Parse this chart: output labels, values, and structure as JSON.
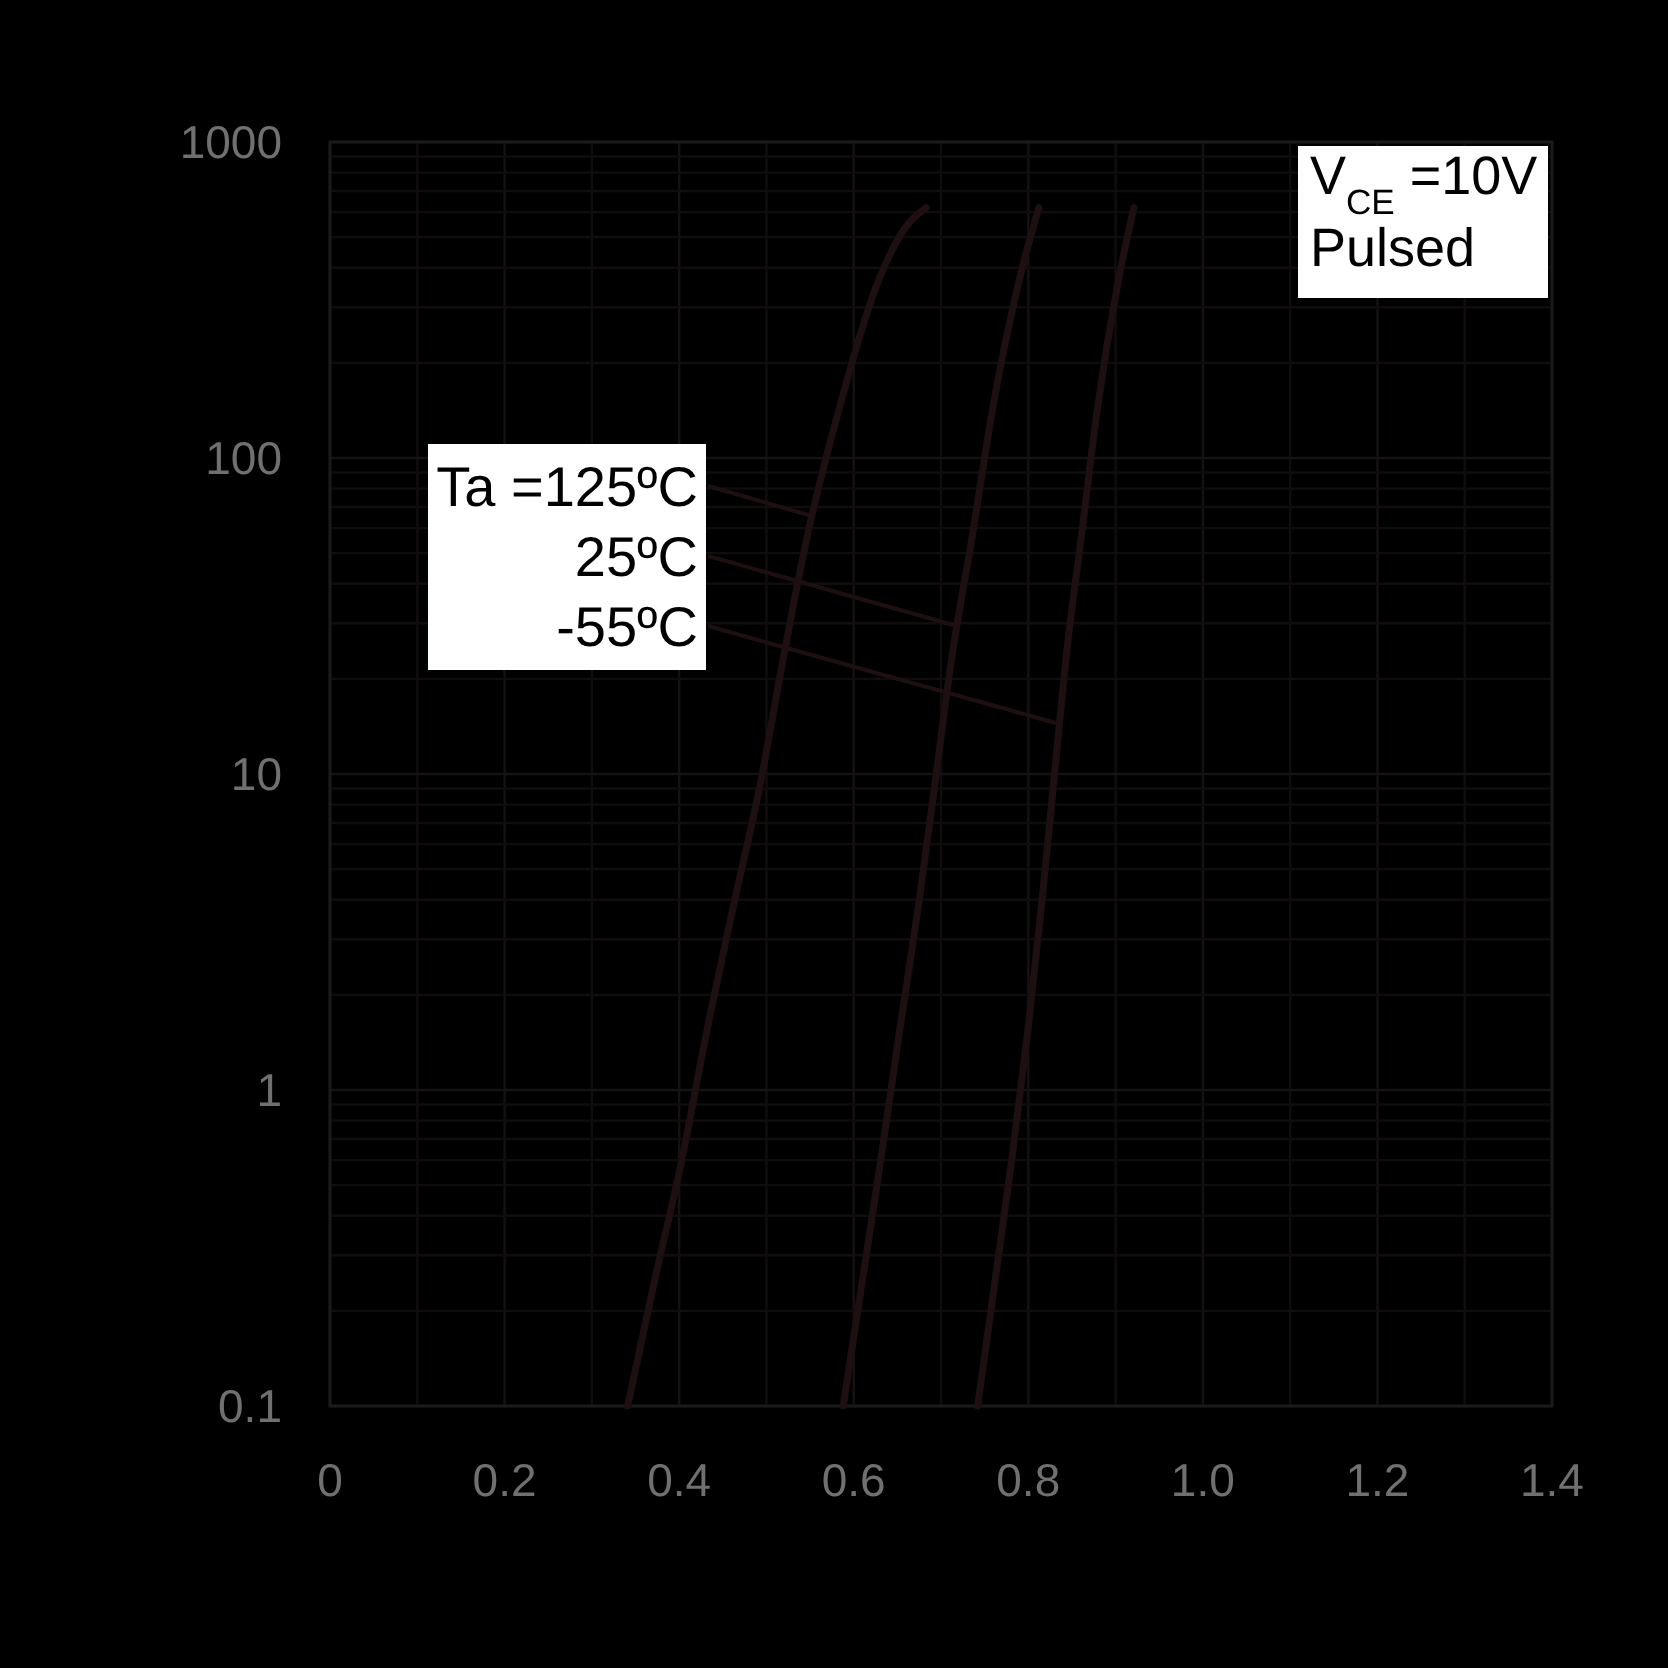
{
  "chart_data": {
    "type": "line",
    "log": "y",
    "grid": true,
    "legend": "left",
    "annotations": [
      "V$_{CE}$ =10V",
      "Pulsed"
    ],
    "xlim": [
      0,
      1.4
    ],
    "xticks": [
      0,
      {
        "value": 0.1,
        "label": null
      },
      0.2,
      {
        "value": 0.3,
        "label": null
      },
      0.4,
      {
        "value": 0.5,
        "label": null
      },
      0.6,
      {
        "value": 0.7,
        "label": null
      },
      0.8,
      {
        "value": 0.9,
        "label": null
      },
      {
        "value": 1,
        "label": "1.0"
      },
      {
        "value": 1.1,
        "label": null
      },
      1.2,
      {
        "value": 1.3,
        "label": null
      },
      1.4
    ],
    "ylim": [
      0.1,
      1000
    ],
    "yticks": [
      0.1,
      {
        "value": 0.2,
        "label": null
      },
      {
        "value": 0.3,
        "label": null
      },
      {
        "value": 0.4,
        "label": null
      },
      {
        "value": 0.5,
        "label": null
      },
      {
        "value": 0.6,
        "label": null
      },
      {
        "value": 0.7,
        "label": null
      },
      {
        "value": 0.8,
        "label": null
      },
      {
        "value": 0.9,
        "label": null
      },
      1,
      {
        "value": 2,
        "label": null
      },
      {
        "value": 3,
        "label": null
      },
      {
        "value": 4,
        "label": null
      },
      {
        "value": 5,
        "label": null
      },
      {
        "value": 6,
        "label": null
      },
      {
        "value": 7,
        "label": null
      },
      {
        "value": 8,
        "label": null
      },
      {
        "value": 9,
        "label": null
      },
      10,
      {
        "value": 20,
        "label": null
      },
      {
        "value": 30,
        "label": null
      },
      {
        "value": 40,
        "label": null
      },
      {
        "value": 50,
        "label": null
      },
      {
        "value": 60,
        "label": null
      },
      {
        "value": 70,
        "label": null
      },
      {
        "value": 80,
        "label": null
      },
      {
        "value": 90,
        "label": null
      },
      100,
      {
        "value": 200,
        "label": null
      },
      {
        "value": 300,
        "label": null
      },
      {
        "value": 400,
        "label": null
      },
      {
        "value": 500,
        "label": null
      },
      {
        "value": 600,
        "label": null
      },
      {
        "value": 700,
        "label": null
      },
      {
        "value": 800,
        "label": null
      },
      {
        "value": 900,
        "label": null
      },
      1000
    ],
    "series": [
      {
        "name": "Ta =125ºC",
        "color": "#1e1010",
        "x": [
          0.341,
          0.372,
          0.403,
          0.431,
          0.462,
          0.493,
          0.519,
          0.547,
          0.583,
          0.626,
          0.66,
          0.683
        ],
        "values": [
          0.1,
          0.25,
          0.6,
          1.5,
          3.8,
          9.3,
          23,
          57,
          142,
          350,
          540,
          620
        ]
      },
      {
        "name": "25ºC",
        "color": "#1e1010",
        "x": [
          0.588,
          0.61,
          0.631,
          0.652,
          0.674,
          0.693,
          0.712,
          0.736,
          0.759,
          0.788,
          0.812
        ],
        "values": [
          0.1,
          0.25,
          0.6,
          1.5,
          3.8,
          9.3,
          23,
          57,
          142,
          350,
          620
        ]
      },
      {
        "name": "-55ºC",
        "color": "#1e1010",
        "x": [
          0.742,
          0.762,
          0.781,
          0.799,
          0.815,
          0.829,
          0.843,
          0.861,
          0.879,
          0.902,
          0.921
        ],
        "values": [
          0.1,
          0.25,
          0.6,
          1.5,
          3.8,
          9.3,
          23,
          57,
          142,
          350,
          620
        ]
      }
    ]
  }
}
